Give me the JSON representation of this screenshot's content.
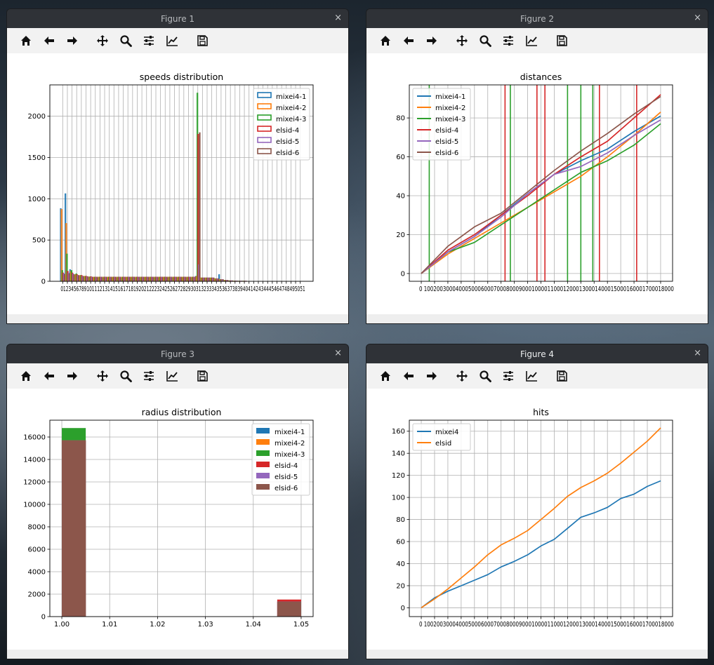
{
  "colors": {
    "c1": "#1f77b4",
    "c2": "#ff7f0e",
    "c3": "#2ca02c",
    "c4": "#d62728",
    "c5": "#9467bd",
    "c6": "#8c564b",
    "titlebar_bg": "#2f3237",
    "toolbar_bg": "#f2f2f2"
  },
  "toolbar_icons": [
    "home-icon",
    "back-arrow-icon",
    "forward-arrow-icon",
    "pan-move-icon",
    "zoom-icon",
    "configure-subplots-icon",
    "edit-axis-icon",
    "save-icon"
  ],
  "windows": [
    {
      "title": "Figure 1"
    },
    {
      "title": "Figure 2"
    },
    {
      "title": "Figure 3"
    },
    {
      "title": "Figure 4"
    }
  ],
  "close_glyph": "×",
  "chart_data": [
    {
      "type": "bar",
      "title": "speeds distribution",
      "xlabel": "",
      "ylabel": "",
      "ylim": [
        0,
        2380
      ],
      "yticks": [
        0,
        500,
        1000,
        1500,
        2000
      ],
      "x_tick_text": "0123456789101112131415161718192021222324252627282930313233343536373839404142434445464748495051",
      "x_tick_labels": [
        "0",
        "1",
        "2",
        "3",
        "4",
        "5",
        "6",
        "7",
        "8",
        "9",
        "10",
        "11",
        "12",
        "13",
        "14",
        "15",
        "16",
        "17",
        "18",
        "19",
        "20",
        "21",
        "22",
        "23",
        "24",
        "25",
        "26",
        "27",
        "28",
        "29",
        "30",
        "31",
        "32",
        "33",
        "34",
        "35",
        "36",
        "37",
        "38",
        "39",
        "40",
        "41",
        "42",
        "43",
        "44",
        "45",
        "46",
        "47",
        "48",
        "49",
        "50",
        "51"
      ],
      "legend": [
        "mixei4-1",
        "mixei4-2",
        "mixei4-3",
        "elsid-4",
        "elsid-5",
        "elsid-6"
      ],
      "legend_style": "outline",
      "legend_position": "upper right",
      "grid": true,
      "series": [
        {
          "name": "mixei4-1",
          "values": [
            880,
            1060,
            140,
            70,
            60,
            50,
            45,
            40,
            40,
            40,
            40,
            40,
            40,
            40,
            40,
            40,
            40,
            40,
            40,
            40,
            40,
            40,
            40,
            40,
            40,
            40,
            40,
            40,
            40,
            60,
            40,
            40,
            40,
            30,
            80,
            10,
            5,
            2,
            1,
            1,
            0,
            0,
            0,
            0,
            0,
            0,
            0,
            0,
            0,
            0,
            0,
            0
          ]
        },
        {
          "name": "mixei4-2",
          "values": [
            870,
            700,
            120,
            80,
            70,
            60,
            50,
            50,
            50,
            50,
            50,
            50,
            50,
            50,
            50,
            50,
            50,
            50,
            50,
            50,
            50,
            50,
            50,
            50,
            50,
            50,
            50,
            50,
            50,
            60,
            40,
            40,
            40,
            30,
            20,
            10,
            5,
            2,
            1,
            1,
            0,
            0,
            0,
            0,
            0,
            0,
            0,
            0,
            0,
            0,
            0,
            0
          ]
        },
        {
          "name": "mixei4-3",
          "values": [
            130,
            330,
            130,
            90,
            70,
            60,
            55,
            50,
            50,
            50,
            50,
            50,
            50,
            50,
            50,
            50,
            50,
            50,
            50,
            50,
            50,
            50,
            50,
            50,
            50,
            50,
            50,
            50,
            50,
            2280,
            40,
            40,
            40,
            30,
            20,
            10,
            5,
            2,
            1,
            1,
            0,
            0,
            0,
            0,
            0,
            0,
            0,
            0,
            0,
            0,
            0,
            0
          ]
        },
        {
          "name": "elsid-4",
          "values": [
            100,
            120,
            100,
            80,
            70,
            60,
            55,
            50,
            50,
            50,
            50,
            50,
            50,
            50,
            50,
            50,
            50,
            50,
            50,
            50,
            50,
            50,
            50,
            50,
            50,
            50,
            50,
            50,
            50,
            1780,
            40,
            40,
            40,
            30,
            20,
            10,
            5,
            2,
            1,
            1,
            0,
            0,
            0,
            0,
            0,
            0,
            0,
            0,
            0,
            0,
            0,
            0
          ]
        },
        {
          "name": "elsid-5",
          "values": [
            90,
            100,
            90,
            70,
            60,
            55,
            50,
            50,
            50,
            50,
            50,
            50,
            50,
            50,
            50,
            50,
            50,
            50,
            50,
            50,
            50,
            50,
            50,
            50,
            50,
            50,
            50,
            50,
            50,
            200,
            40,
            40,
            40,
            30,
            20,
            10,
            5,
            2,
            1,
            1,
            0,
            0,
            0,
            0,
            0,
            0,
            0,
            0,
            0,
            0,
            0,
            0
          ]
        },
        {
          "name": "elsid-6",
          "values": [
            80,
            90,
            80,
            70,
            60,
            55,
            50,
            50,
            50,
            50,
            50,
            50,
            50,
            50,
            50,
            50,
            50,
            50,
            50,
            50,
            50,
            50,
            50,
            50,
            50,
            50,
            50,
            50,
            50,
            1800,
            40,
            40,
            40,
            30,
            20,
            10,
            5,
            2,
            1,
            1,
            0,
            0,
            0,
            0,
            0,
            0,
            0,
            0,
            0,
            0,
            0,
            0
          ]
        }
      ]
    },
    {
      "type": "line",
      "title": "distances",
      "xlabel": "",
      "ylabel": "",
      "xlim": [
        0,
        18000
      ],
      "ylim": [
        -4,
        97
      ],
      "x_tick_text": "0 1002003000400050006000700080009000100001100012000130001400015000160001700018000",
      "x_tick_labels": [
        "0",
        "1000",
        "2000",
        "3000",
        "4000",
        "5000",
        "6000",
        "7000",
        "8000",
        "9000",
        "10000",
        "11000",
        "12000",
        "13000",
        "14000",
        "15000",
        "16000",
        "17000",
        "18000"
      ],
      "yticks": [
        0,
        20,
        40,
        60,
        80
      ],
      "legend": [
        "mixei4-1",
        "mixei4-2",
        "mixei4-3",
        "elsid-4",
        "elsid-5",
        "elsid-6"
      ],
      "legend_position": "upper left",
      "grid": true,
      "vlines": [
        {
          "x": 600,
          "color": "c3"
        },
        {
          "x": 6300,
          "color": "c4"
        },
        {
          "x": 6700,
          "color": "c3"
        },
        {
          "x": 8700,
          "color": "c4"
        },
        {
          "x": 9300,
          "color": "c4"
        },
        {
          "x": 11000,
          "color": "c3"
        },
        {
          "x": 12000,
          "color": "c3"
        },
        {
          "x": 12900,
          "color": "c3"
        },
        {
          "x": 13400,
          "color": "c4"
        },
        {
          "x": 16200,
          "color": "c4"
        }
      ],
      "series": [
        {
          "name": "mixei4-1",
          "x": [
            0,
            2000,
            4000,
            6000,
            8000,
            10000,
            12000,
            14000,
            16000,
            18000
          ],
          "y": [
            0,
            11,
            19,
            30,
            41,
            51,
            58,
            64,
            73,
            81
          ]
        },
        {
          "name": "mixei4-2",
          "x": [
            0,
            2000,
            4000,
            6000,
            8000,
            10000,
            12000,
            14000,
            16000,
            18000
          ],
          "y": [
            0,
            10,
            18,
            26,
            34,
            42,
            50,
            60,
            71,
            83
          ]
        },
        {
          "name": "mixei4-3",
          "x": [
            0,
            2000,
            4000,
            6000,
            8000,
            10000,
            12000,
            14000,
            16000,
            18000
          ],
          "y": [
            0,
            11,
            16,
            25,
            34,
            43,
            52,
            58,
            66,
            77
          ]
        },
        {
          "name": "elsid-4",
          "x": [
            0,
            2000,
            4000,
            6000,
            8000,
            10000,
            12000,
            14000,
            16000,
            18000
          ],
          "y": [
            0,
            12,
            20,
            30,
            40,
            51,
            60,
            68,
            80,
            92
          ]
        },
        {
          "name": "elsid-5",
          "x": [
            0,
            2000,
            4000,
            6000,
            8000,
            10000,
            12000,
            14000,
            16000,
            18000
          ],
          "y": [
            0,
            11,
            19,
            29,
            41,
            51,
            55,
            62,
            71,
            79
          ]
        },
        {
          "name": "elsid-6",
          "x": [
            0,
            2000,
            4000,
            6000,
            8000,
            10000,
            12000,
            14000,
            16000,
            18000
          ],
          "y": [
            0,
            14,
            24,
            31,
            42,
            53,
            63,
            72,
            82,
            91
          ]
        }
      ]
    },
    {
      "type": "bar",
      "title": "radius distribution",
      "xlabel": "",
      "ylabel": "",
      "xlim": [
        0.9975,
        1.0525
      ],
      "ylim": [
        0,
        17500
      ],
      "xticks": [
        "1.00",
        "1.01",
        "1.02",
        "1.03",
        "1.04",
        "1.05"
      ],
      "yticks": [
        0,
        2000,
        4000,
        6000,
        8000,
        10000,
        12000,
        14000,
        16000
      ],
      "legend": [
        "mixei4-1",
        "mixei4-2",
        "mixei4-3",
        "elsid-4",
        "elsid-5",
        "elsid-6"
      ],
      "legend_position": "upper right",
      "grid": true,
      "bins": [
        [
          1.0,
          1.005
        ],
        [
          1.045,
          1.05
        ]
      ],
      "series": [
        {
          "name": "mixei4-1",
          "values": [
            15700,
            0
          ]
        },
        {
          "name": "mixei4-2",
          "values": [
            15700,
            0
          ]
        },
        {
          "name": "mixei4-3",
          "values": [
            16800,
            0
          ]
        },
        {
          "name": "elsid-4",
          "values": [
            15700,
            1520
          ]
        },
        {
          "name": "elsid-5",
          "values": [
            15700,
            1350
          ]
        },
        {
          "name": "elsid-6",
          "values": [
            15700,
            1340
          ]
        }
      ]
    },
    {
      "type": "line",
      "title": "hits",
      "xlabel": "",
      "ylabel": "",
      "xlim": [
        0,
        18000
      ],
      "ylim": [
        -8,
        170
      ],
      "x_tick_text": "0 1002003000400050006000700080009000100001100012000130001400015000160001700018000",
      "x_tick_labels": [
        "0",
        "1000",
        "2000",
        "3000",
        "4000",
        "5000",
        "6000",
        "7000",
        "8000",
        "9000",
        "10000",
        "11000",
        "12000",
        "13000",
        "14000",
        "15000",
        "16000",
        "17000",
        "18000"
      ],
      "yticks": [
        0,
        20,
        40,
        60,
        80,
        100,
        120,
        140,
        160
      ],
      "legend": [
        "mixei4",
        "elsid"
      ],
      "legend_position": "upper left",
      "grid": true,
      "series": [
        {
          "name": "mixei4",
          "x": [
            0,
            1000,
            2000,
            3000,
            4000,
            5000,
            6000,
            7000,
            8000,
            9000,
            10000,
            11000,
            12000,
            13000,
            14000,
            15000,
            16000,
            17000,
            18000
          ],
          "y": [
            0,
            9,
            15,
            20,
            25,
            30,
            37,
            42,
            48,
            56,
            62,
            72,
            82,
            86,
            91,
            99,
            103,
            110,
            115
          ]
        },
        {
          "name": "elsid",
          "x": [
            0,
            1000,
            2000,
            3000,
            4000,
            5000,
            6000,
            7000,
            8000,
            9000,
            10000,
            11000,
            12000,
            13000,
            14000,
            15000,
            16000,
            17000,
            18000
          ],
          "y": [
            0,
            8,
            17,
            27,
            37,
            48,
            57,
            63,
            70,
            80,
            90,
            101,
            109,
            115,
            122,
            131,
            141,
            151,
            163
          ]
        }
      ]
    }
  ]
}
